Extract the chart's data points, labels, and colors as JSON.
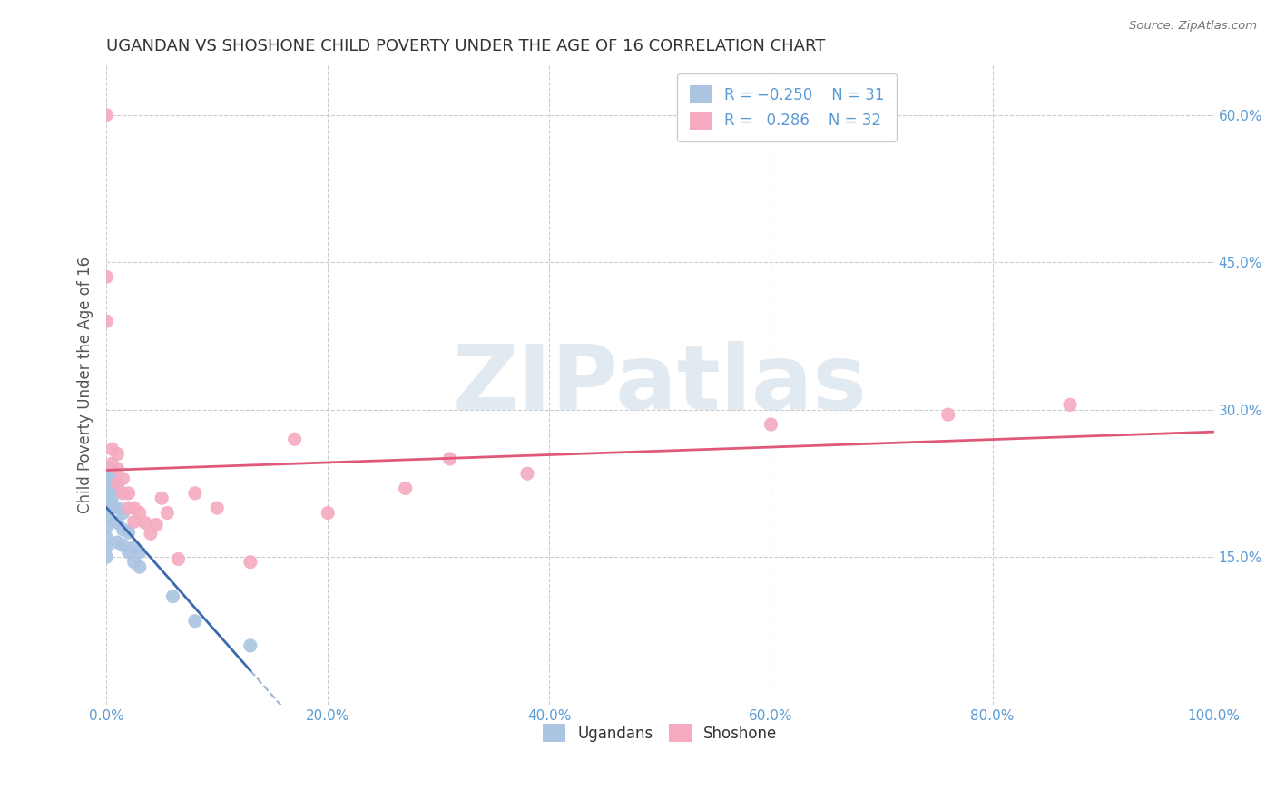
{
  "title": "UGANDAN VS SHOSHONE CHILD POVERTY UNDER THE AGE OF 16 CORRELATION CHART",
  "source": "Source: ZipAtlas.com",
  "ylabel": "Child Poverty Under the Age of 16",
  "xlim": [
    0.0,
    1.0
  ],
  "ylim": [
    0.0,
    0.65
  ],
  "xticks": [
    0.0,
    0.2,
    0.4,
    0.6,
    0.8,
    1.0
  ],
  "xtick_labels": [
    "0.0%",
    "20.0%",
    "40.0%",
    "60.0%",
    "80.0%",
    "100.0%"
  ],
  "ytick_right_vals": [
    0.15,
    0.3,
    0.45,
    0.6
  ],
  "ytick_right_labels": [
    "15.0%",
    "30.0%",
    "45.0%",
    "60.0%"
  ],
  "ugandan_color": "#aac4e2",
  "shoshone_color": "#f5aabf",
  "ugandan_line_color": "#3c6ab0",
  "shoshone_line_color": "#e05878",
  "watermark": "ZIPatlas",
  "ugandan_x": [
    0.0,
    0.0,
    0.0,
    0.0,
    0.0,
    0.0,
    0.0,
    0.0,
    0.0,
    0.0,
    0.005,
    0.005,
    0.005,
    0.005,
    0.005,
    0.01,
    0.01,
    0.01,
    0.01,
    0.015,
    0.015,
    0.015,
    0.02,
    0.02,
    0.025,
    0.025,
    0.03,
    0.03,
    0.06,
    0.08,
    0.13
  ],
  "ugandan_y": [
    0.24,
    0.23,
    0.22,
    0.21,
    0.2,
    0.19,
    0.18,
    0.17,
    0.16,
    0.15,
    0.24,
    0.23,
    0.22,
    0.21,
    0.2,
    0.22,
    0.2,
    0.185,
    0.165,
    0.195,
    0.178,
    0.162,
    0.175,
    0.155,
    0.16,
    0.145,
    0.155,
    0.14,
    0.11,
    0.085,
    0.06
  ],
  "shoshone_x": [
    0.0,
    0.0,
    0.0,
    0.005,
    0.005,
    0.01,
    0.01,
    0.01,
    0.015,
    0.015,
    0.02,
    0.02,
    0.025,
    0.025,
    0.03,
    0.035,
    0.04,
    0.045,
    0.05,
    0.055,
    0.065,
    0.08,
    0.1,
    0.13,
    0.17,
    0.2,
    0.27,
    0.31,
    0.38,
    0.6,
    0.76,
    0.87
  ],
  "shoshone_y": [
    0.6,
    0.435,
    0.39,
    0.26,
    0.245,
    0.255,
    0.24,
    0.225,
    0.23,
    0.215,
    0.215,
    0.2,
    0.2,
    0.186,
    0.195,
    0.185,
    0.174,
    0.183,
    0.21,
    0.195,
    0.148,
    0.215,
    0.2,
    0.145,
    0.27,
    0.195,
    0.22,
    0.25,
    0.235,
    0.285,
    0.295,
    0.305
  ],
  "background_color": "#ffffff",
  "grid_color": "#cccccc"
}
